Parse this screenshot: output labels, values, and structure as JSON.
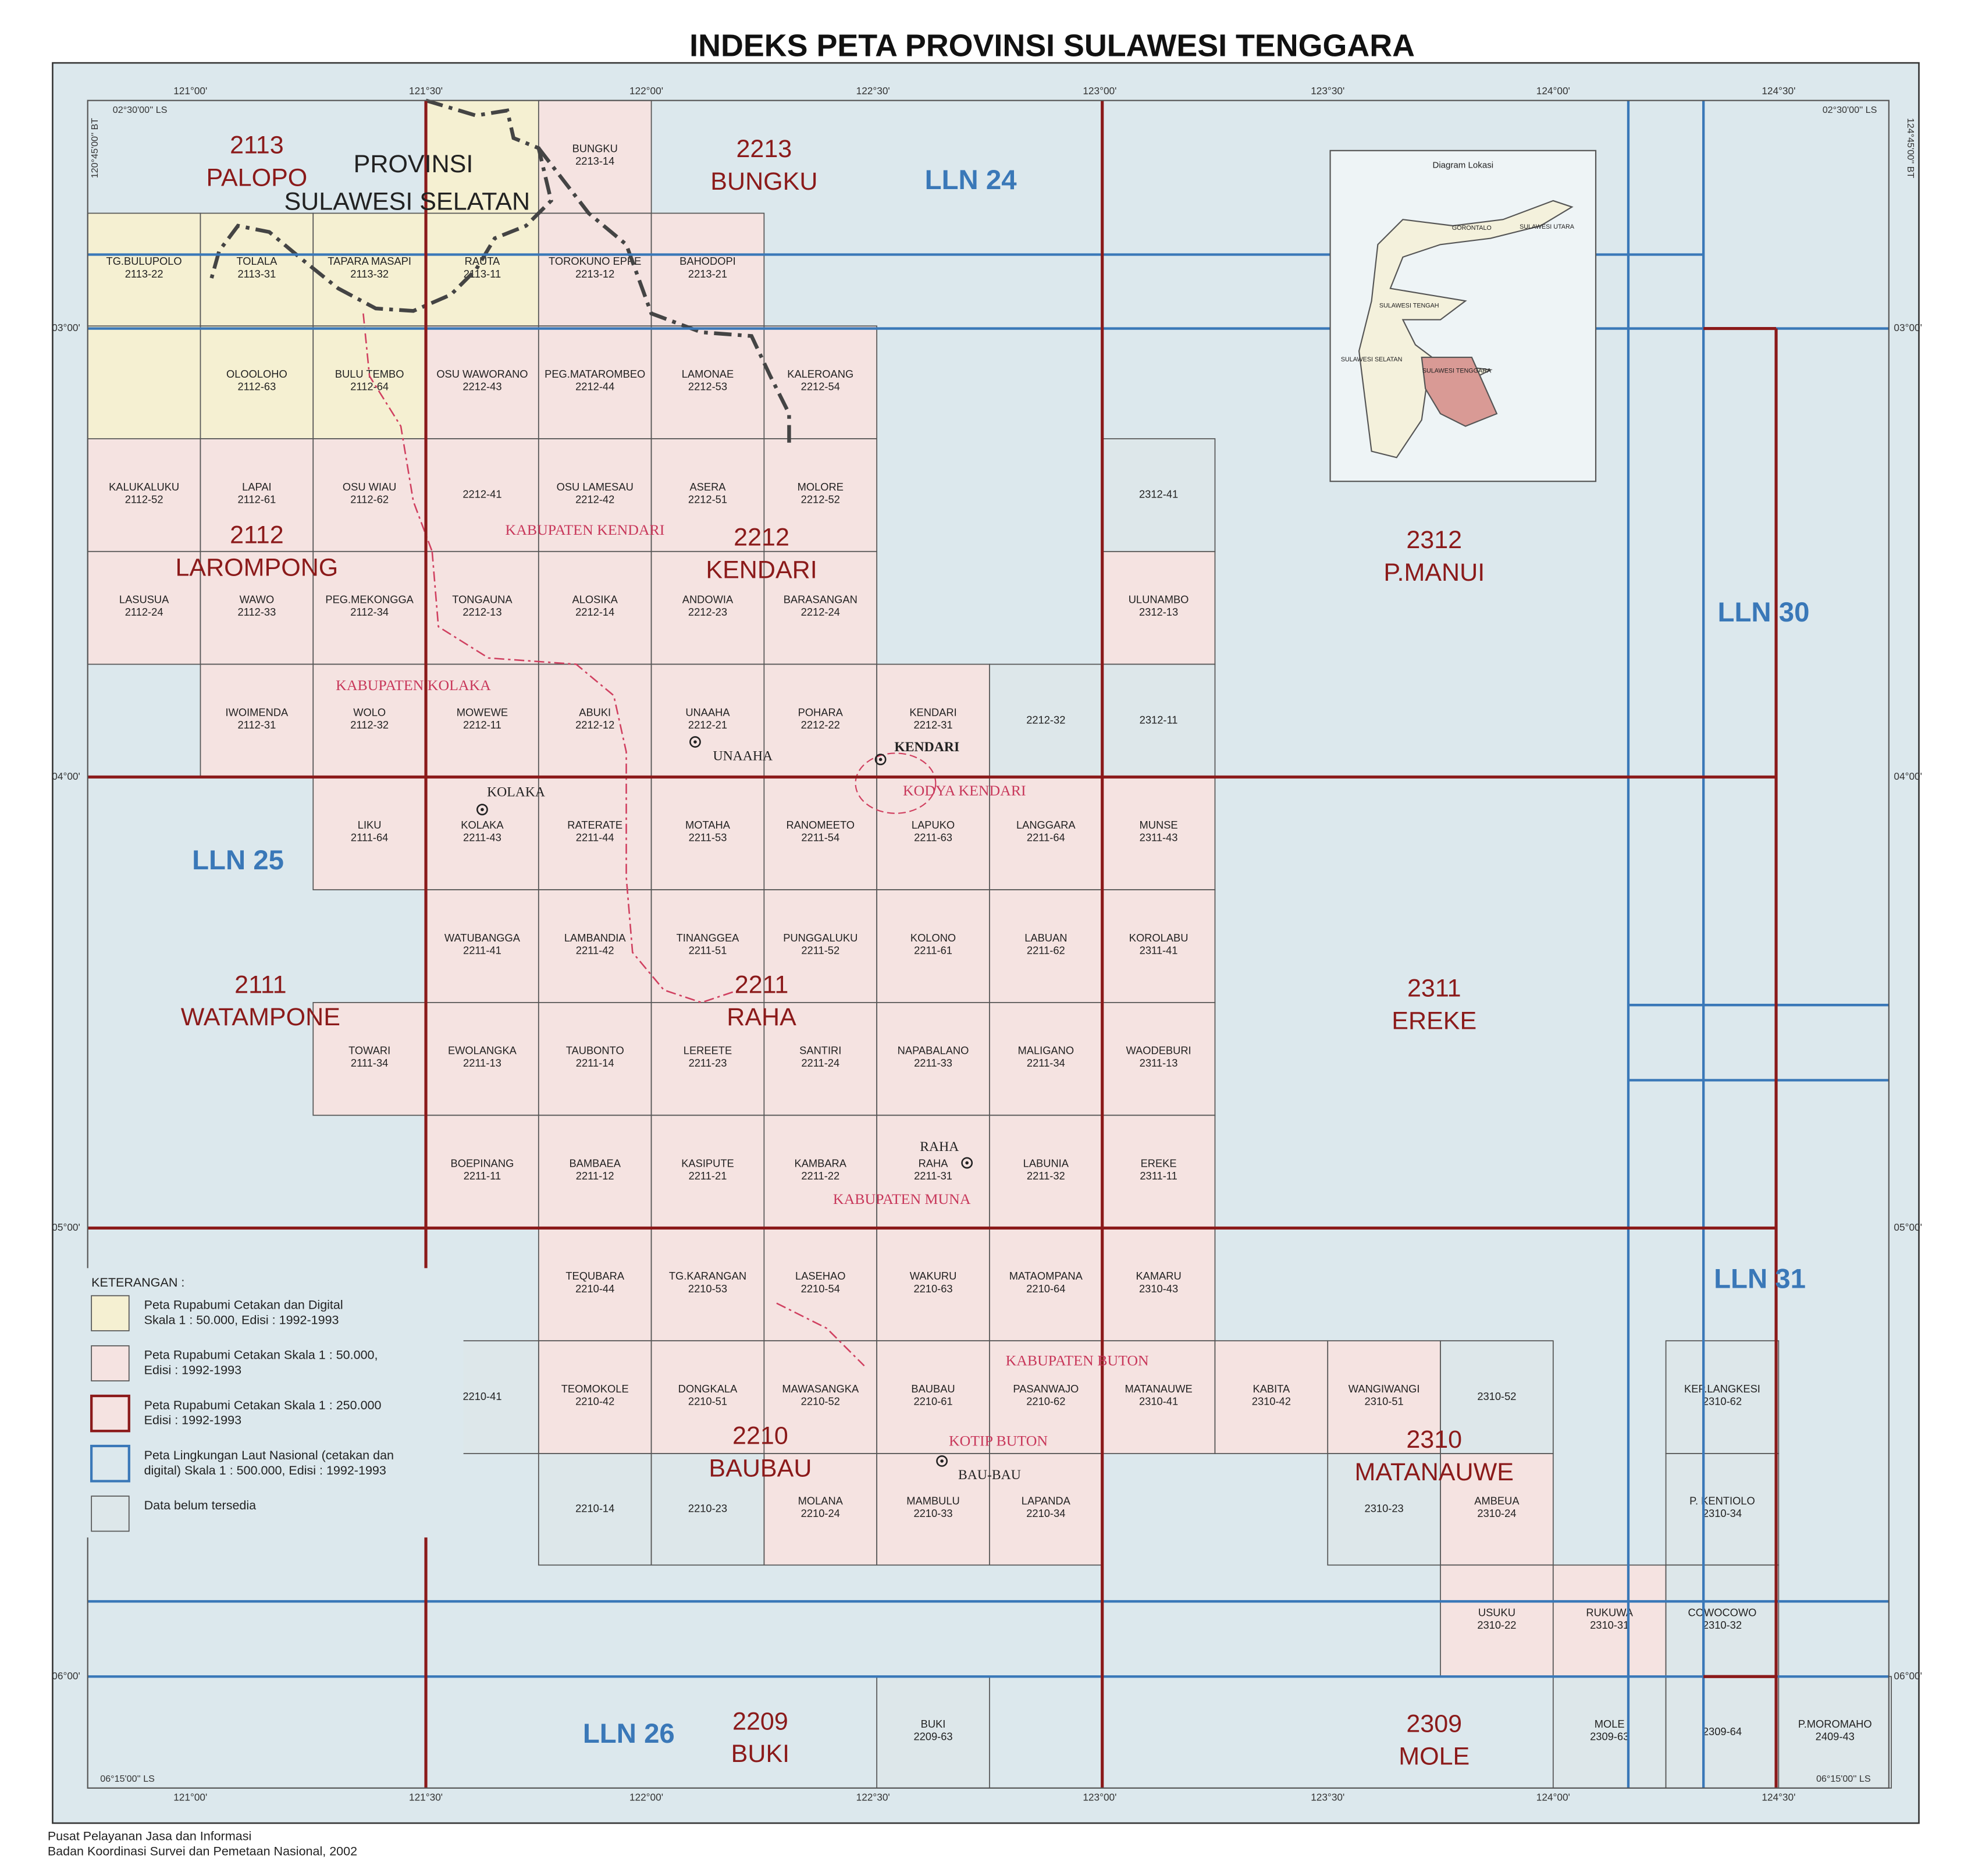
{
  "title": "INDEKS PETA PROVINSI SULAWESI TENGGARA",
  "legend": {
    "heading": "KETERANGAN :",
    "items": [
      {
        "lines": [
          "Peta Rupabumi Cetakan dan Digital",
          "Skala 1 : 50.000, Edisi : 1992-1993"
        ],
        "color": "#f5f0d2",
        "sheets": [
          {
            "name": "TG.BULUPOLO",
            "code": "2113-22"
          },
          {
            "name": "TOLALA",
            "code": "2113-31"
          },
          {
            "name": "TAPARA MASAPI",
            "code": "2113-32"
          },
          {
            "name": "RAUTA",
            "code": "2113-11"
          },
          {
            "name": "OLOOLOHO",
            "code": "2112-63"
          },
          {
            "name": "BULU TEMBO",
            "code": "2112-64"
          }
        ]
      },
      {
        "lines": [
          "Peta Rupabumi Cetakan Skala 1 : 50.000,",
          "Edisi : 1992-1993"
        ],
        "color": "#f5e3e1",
        "sheets": [
          {
            "name": "BUNGKU",
            "code": "2213-14"
          },
          {
            "name": "TOROKUNO EPPE",
            "code": "2213-12"
          },
          {
            "name": "BAHODOPI",
            "code": "2213-21"
          },
          {
            "name": "OSU WAWORANO",
            "code": "2212-43"
          },
          {
            "name": "PEG.MATAROMBEO",
            "code": "2212-44"
          },
          {
            "name": "LAMONAE",
            "code": "2212-53"
          },
          {
            "name": "KALEROANG",
            "code": "2212-54"
          },
          {
            "name": "KALUKALUKU",
            "code": "2112-52"
          },
          {
            "name": "LAPAI",
            "code": "2112-61"
          },
          {
            "name": "OSU WIAU",
            "code": "2112-62"
          },
          {
            "code": "2212-41"
          },
          {
            "name": "OSU LAMESAU",
            "code": "2212-42"
          },
          {
            "name": "ASERA",
            "code": "2212-51"
          },
          {
            "name": "MOLORE",
            "code": "2212-52"
          },
          {
            "name": "LASUSUA",
            "code": "2112-24"
          },
          {
            "name": "WAWO",
            "code": "2112-33"
          },
          {
            "name": "PEG.MEKONGGA",
            "code": "2112-34"
          },
          {
            "name": "TONGAUNA",
            "code": "2212-13"
          },
          {
            "name": "ALOSIKA",
            "code": "2212-14"
          },
          {
            "name": "ANDOWIA",
            "code": "2212-23"
          },
          {
            "name": "BARASANGAN",
            "code": "2212-24"
          },
          {
            "name": "ULUNAMBO",
            "code": "2312-13"
          },
          {
            "name": "IWOIMENDA",
            "code": "2112-31"
          },
          {
            "name": "WOLO",
            "code": "2112-32"
          },
          {
            "name": "MOWEWE",
            "code": "2212-11"
          },
          {
            "name": "ABUKI",
            "code": "2212-12"
          },
          {
            "name": "UNAAHA",
            "code": "2212-21"
          },
          {
            "name": "POHARA",
            "code": "2212-22"
          },
          {
            "name": "KENDARI",
            "code": "2212-31"
          },
          {
            "name": "LIKU",
            "code": "2111-64"
          },
          {
            "name": "KOLAKA",
            "code": "2211-43"
          },
          {
            "name": "RATERATE",
            "code": "2211-44"
          },
          {
            "name": "MOTAHA",
            "code": "2211-53"
          },
          {
            "name": "RANOMEETO",
            "code": "2211-54"
          },
          {
            "name": "LAPUKO",
            "code": "2211-63"
          },
          {
            "name": "LANGGARA",
            "code": "2211-64"
          },
          {
            "name": "MUNSE",
            "code": "2311-43"
          },
          {
            "name": "WATUBANGGA",
            "code": "2211-41"
          },
          {
            "name": "LAMBANDIA",
            "code": "2211-42"
          },
          {
            "name": "TINANGGEA",
            "code": "2211-51"
          },
          {
            "name": "PUNGGALUKU",
            "code": "2211-52"
          },
          {
            "name": "KOLONO",
            "code": "2211-61"
          },
          {
            "name": "LABUAN",
            "code": "2211-62"
          },
          {
            "name": "KOROLABU",
            "code": "2311-41"
          },
          {
            "name": "TOWARI",
            "code": "2111-34"
          },
          {
            "name": "EWOLANGKA",
            "code": "2211-13"
          },
          {
            "name": "TAUBONTO",
            "code": "2211-14"
          },
          {
            "name": "LEREETE",
            "code": "2211-23"
          },
          {
            "name": "SANTIRI",
            "code": "2211-24"
          },
          {
            "name": "NAPABALANO",
            "code": "2211-33"
          },
          {
            "name": "MALIGANO",
            "code": "2211-34"
          },
          {
            "name": "WAODEBURI",
            "code": "2311-13"
          },
          {
            "name": "BOEPINANG",
            "code": "2211-11"
          },
          {
            "name": "BAMBAEA",
            "code": "2211-12"
          },
          {
            "name": "KASIPUTE",
            "code": "2211-21"
          },
          {
            "name": "KAMBARA",
            "code": "2211-22"
          },
          {
            "name": "RAHA",
            "code": "2211-31"
          },
          {
            "name": "LABUNIA",
            "code": "2211-32"
          },
          {
            "name": "EREKE",
            "code": "2311-11"
          },
          {
            "name": "TEQUBARA",
            "code": "2210-44"
          },
          {
            "name": "TG.KARANGAN",
            "code": "2210-53"
          },
          {
            "name": "LASEHAO",
            "code": "2210-54"
          },
          {
            "name": "WAKURU",
            "code": "2210-63"
          },
          {
            "name": "MATAOMPANA",
            "code": "2210-64"
          },
          {
            "name": "KAMARU",
            "code": "2310-43"
          },
          {
            "name": "TEOMOKOLE",
            "code": "2210-42"
          },
          {
            "name": "DONGKALA",
            "code": "2210-51"
          },
          {
            "name": "MAWASANGKA",
            "code": "2210-52"
          },
          {
            "name": "BAUBAU",
            "code": "2210-61"
          },
          {
            "name": "PASANWAJO",
            "code": "2210-62"
          },
          {
            "name": "MATANAUWE",
            "code": "2310-41"
          },
          {
            "name": "KABITA",
            "code": "2310-42"
          },
          {
            "name": "WANGIWANGI",
            "code": "2310-51"
          },
          {
            "name": "MOLANA",
            "code": "2210-24"
          },
          {
            "name": "MAMBULU",
            "code": "2210-33"
          },
          {
            "name": "LAPANDA",
            "code": "2210-34"
          },
          {
            "name": "AMBEUA",
            "code": "2310-24"
          },
          {
            "name": "USUKU",
            "code": "2310-22"
          },
          {
            "name": "RUKUWA",
            "code": "2310-31"
          }
        ]
      },
      {
        "lines": [
          "Peta Rupabumi Cetakan Skala 1 : 250.000",
          "Edisi : 1992-1993"
        ],
        "color": "#8b1a1a",
        "sheets": [
          {
            "code": "2113",
            "name": "PALOPO"
          },
          {
            "code": "2213",
            "name": "BUNGKU"
          },
          {
            "code": "2312",
            "name": "P.MANUI"
          },
          {
            "code": "2112",
            "name": "LAROMPONG"
          },
          {
            "code": "2212",
            "name": "KENDARI"
          },
          {
            "code": "2111",
            "name": "WATAMPONE"
          },
          {
            "code": "2211",
            "name": "RAHA"
          },
          {
            "code": "2311",
            "name": "EREKE"
          },
          {
            "code": "2210",
            "name": "BAUBAU"
          },
          {
            "code": "2310",
            "name": "MATANAUWE"
          },
          {
            "code": "2209",
            "name": "BUKI"
          },
          {
            "code": "2309",
            "name": "MOLE"
          }
        ]
      },
      {
        "lines": [
          "Peta Lingkungan Laut Nasional (cetakan dan",
          "digital) Skala 1 : 500.000, Edisi : 1992-1993"
        ],
        "color": "#3a78b8",
        "sheets": [
          {
            "name": "LLN 24"
          },
          {
            "name": "LLN 25"
          },
          {
            "name": "LLN 26"
          },
          {
            "name": "LLN 30"
          },
          {
            "name": "LLN 31"
          }
        ]
      },
      {
        "lines": [
          "Data belum tersedia"
        ],
        "color": "#dde7ea",
        "sheets": [
          {
            "code": "2312-41"
          },
          {
            "code": "2212-32"
          },
          {
            "code": "2312-11"
          },
          {
            "code": "2210-41"
          },
          {
            "code": "2310-52"
          },
          {
            "name": "KEP.LANGKESI",
            "code": "2310-62"
          },
          {
            "code": "2210-14"
          },
          {
            "code": "2210-23"
          },
          {
            "code": "2310-23"
          },
          {
            "name": "P. KENTIOLO",
            "code": "2310-34"
          },
          {
            "name": "COWOCOWO",
            "code": "2310-32"
          },
          {
            "name": "BUKI",
            "code": "2209-63"
          },
          {
            "name": "MOLE",
            "code": "2309-63"
          },
          {
            "code": "2309-64"
          },
          {
            "name": "P.MOROMAHO",
            "code": "2409-43"
          }
        ]
      }
    ]
  },
  "longitudes": [
    "121°00'",
    "121°30'",
    "122°00'",
    "122°30'",
    "123°00'",
    "123°30'",
    "124°00'",
    "124°30'"
  ],
  "latitudes": [
    "03°00'",
    "04°00'",
    "05°00'",
    "06°00'"
  ],
  "corners": [
    "02°30'00'' LS",
    "120°45'00'' BT",
    "06°15'00'' LS",
    "124°45'00'' BT"
  ],
  "province": [
    "PROVINSI",
    "SULAWESI SELATAN"
  ],
  "regions": [
    "KABUPATEN KENDARI",
    "KABUPATEN KOLAKA",
    "KODYA KENDARI",
    "KABUPATEN MUNA",
    "KABUPATEN BUTON",
    "KOTIP BUTON"
  ],
  "towns": [
    "UNAAHA",
    "KENDARI",
    "KOLAKA",
    "RAHA",
    "BAU-BAU"
  ],
  "inset": {
    "title": "Diagram Lokasi",
    "labels": [
      "GORONTALO",
      "SULAWESI UTARA",
      "SULAWESI TENGAH",
      "SULAWESI SELATAN",
      "SULAWESI TENGGARA"
    ]
  },
  "footer": [
    "Pusat Pelayanan Jasa dan Informasi",
    "Badan Koordinasi Survei dan Pemetaan Nasional, 2002"
  ]
}
